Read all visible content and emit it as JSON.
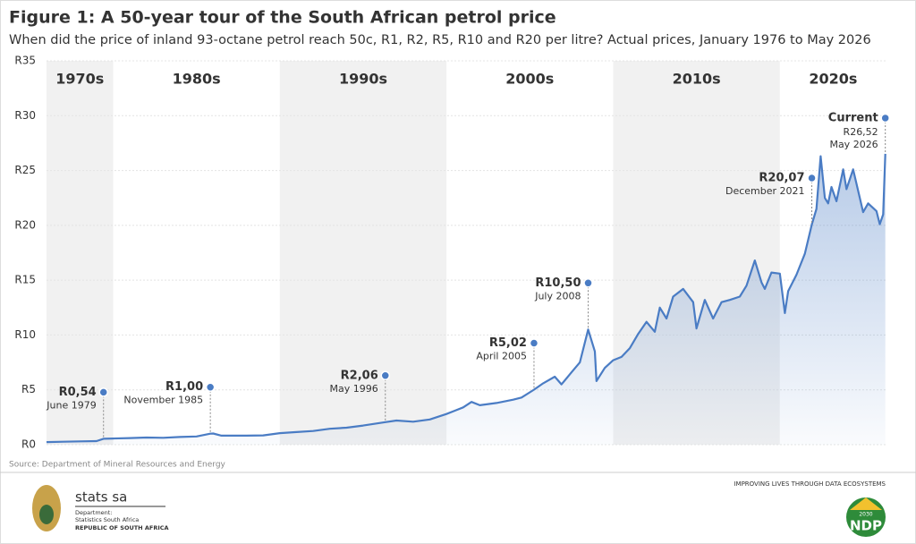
{
  "chart_data": {
    "type": "line",
    "title": "Figure 1: A 50-year tour of the South African petrol price",
    "subtitle": "When did the price of inland 93-octane petrol reach 50c, R1, R2, R5, R10 and R20 per litre? Actual prices, January 1976 to May 2026",
    "source": "Source: Department of Mineral Resources and Energy",
    "color": "#4a7cc4",
    "xlim": [
      1976,
      2026.4
    ],
    "ylim": [
      0,
      35
    ],
    "yticks": [
      {
        "value": 0,
        "label": "R0"
      },
      {
        "value": 5,
        "label": "R5"
      },
      {
        "value": 10,
        "label": "R10"
      },
      {
        "value": 15,
        "label": "R15"
      },
      {
        "value": 20,
        "label": "R20"
      },
      {
        "value": 25,
        "label": "R25"
      },
      {
        "value": 30,
        "label": "R30"
      },
      {
        "value": 35,
        "label": "R35"
      }
    ],
    "grid": true,
    "bands": [
      {
        "label": "1970s",
        "start": 1976,
        "end": 1980,
        "shaded": true
      },
      {
        "label": "1980s",
        "start": 1980,
        "end": 1990,
        "shaded": false
      },
      {
        "label": "1990s",
        "start": 1990,
        "end": 2000,
        "shaded": true
      },
      {
        "label": "2000s",
        "start": 2000,
        "end": 2010,
        "shaded": false
      },
      {
        "label": "2010s",
        "start": 2010,
        "end": 2020,
        "shaded": true
      },
      {
        "label": "2020s",
        "start": 2020,
        "end": 2026.4,
        "shaded": false
      }
    ],
    "x": [
      1976,
      1977,
      1978,
      1979,
      1979.42,
      1980,
      1981,
      1982,
      1983,
      1984,
      1985,
      1985.83,
      1986,
      1986.5,
      1988,
      1989,
      1990,
      1991,
      1992,
      1993,
      1994,
      1995,
      1996.33,
      1997,
      1998,
      1999,
      2000,
      2000.5,
      2001,
      2001.5,
      2002,
      2003,
      2004,
      2004.5,
      2005.25,
      2005.8,
      2006.5,
      2006.9,
      2007.5,
      2008,
      2008.5,
      2008.9,
      2009,
      2009.5,
      2010,
      2010.5,
      2011,
      2011.5,
      2012,
      2012.5,
      2012.8,
      2013.2,
      2013.6,
      2014.2,
      2014.8,
      2015,
      2015.5,
      2016,
      2016.5,
      2017,
      2017.6,
      2018,
      2018.5,
      2018.9,
      2019.1,
      2019.5,
      2020,
      2020.3,
      2020.5,
      2021,
      2021.5,
      2021.92,
      2022.2,
      2022.45,
      2022.7,
      2022.9,
      2023.1,
      2023.4,
      2023.8,
      2024,
      2024.4,
      2024.8,
      2025,
      2025.3,
      2025.8,
      2026,
      2026.2,
      2026.33
    ],
    "values": [
      0.24,
      0.27,
      0.3,
      0.33,
      0.54,
      0.56,
      0.6,
      0.65,
      0.63,
      0.7,
      0.75,
      1.0,
      1.02,
      0.82,
      0.82,
      0.85,
      1.05,
      1.15,
      1.25,
      1.45,
      1.55,
      1.75,
      2.06,
      2.2,
      2.1,
      2.3,
      2.8,
      3.1,
      3.4,
      3.9,
      3.6,
      3.8,
      4.1,
      4.3,
      5.02,
      5.6,
      6.2,
      5.5,
      6.6,
      7.5,
      10.5,
      8.5,
      5.8,
      7.0,
      7.7,
      8.0,
      8.8,
      10.1,
      11.2,
      10.3,
      12.5,
      11.5,
      13.5,
      14.2,
      13.0,
      10.6,
      13.2,
      11.5,
      13.0,
      13.2,
      13.5,
      14.5,
      16.8,
      14.8,
      14.2,
      15.7,
      15.6,
      12.0,
      14.0,
      15.5,
      17.4,
      20.07,
      21.5,
      26.3,
      22.5,
      22.0,
      23.5,
      22.2,
      25.1,
      23.3,
      25.1,
      22.5,
      21.2,
      22.0,
      21.3,
      20.1,
      21.0,
      26.52
    ],
    "annotations": [
      {
        "x": 1979.42,
        "value": 0.54,
        "value_label": "R0,54",
        "date": "June 1979"
      },
      {
        "x": 1985.83,
        "value": 1.0,
        "value_label": "R1,00",
        "date": "November 1985"
      },
      {
        "x": 1996.33,
        "value": 2.06,
        "value_label": "R2,06",
        "date": "May 1996"
      },
      {
        "x": 2005.25,
        "value": 5.02,
        "value_label": "R5,02",
        "date": "April 2005"
      },
      {
        "x": 2008.5,
        "value": 10.5,
        "value_label": "R10,50",
        "date": "July 2008"
      },
      {
        "x": 2021.92,
        "value": 20.07,
        "value_label": "R20,07",
        "date": "December 2021"
      },
      {
        "x": 2026.33,
        "value": 26.52,
        "label": "Current",
        "value_label": "R26,52",
        "date": "May 2026"
      }
    ]
  },
  "footer": {
    "brand": "stats sa",
    "department": "Department:",
    "org": "Statistics South Africa",
    "country": "REPUBLIC OF SOUTH AFRICA",
    "tagline": "IMPROVING LIVES THROUGH DATA ECOSYSTEMS",
    "ndp_year": "2030",
    "ndp": "NDP"
  }
}
